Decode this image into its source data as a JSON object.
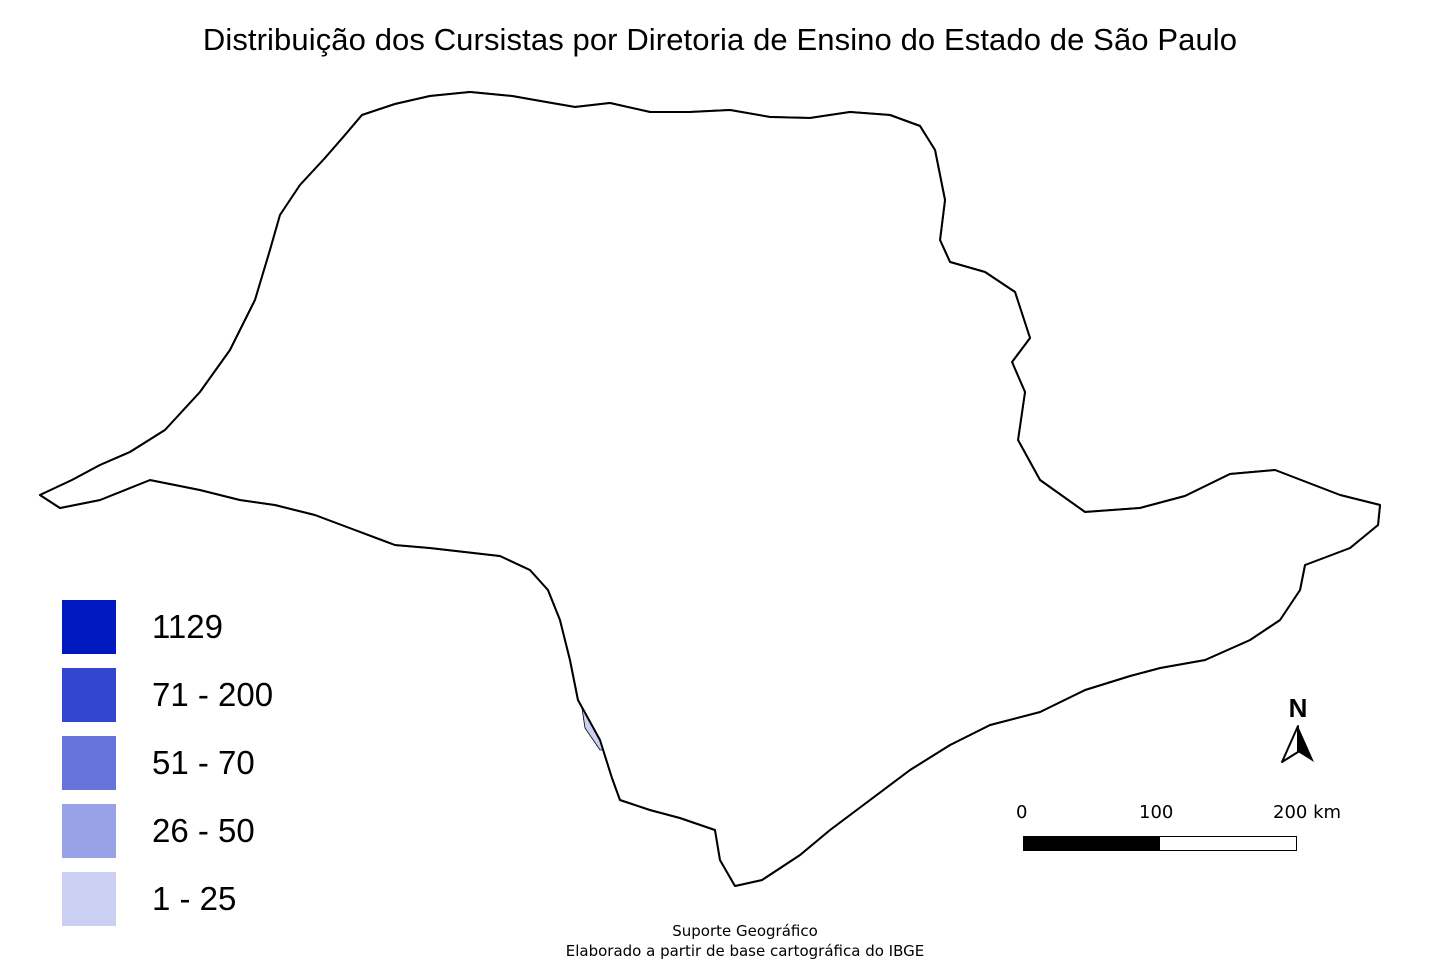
{
  "title": "Distribuição dos Cursistas por Diretoria de Ensino do Estado de São Paulo",
  "legend": [
    {
      "label": "1129",
      "color": "#0018c0"
    },
    {
      "label": "71 - 200",
      "color": "#3346cf"
    },
    {
      "label": "51 - 70",
      "color": "#6573db"
    },
    {
      "label": "26 - 50",
      "color": "#99a2e6"
    },
    {
      "label": "1 - 25",
      "color": "#cbd0f3"
    }
  ],
  "north_arrow": {
    "label": "N"
  },
  "scale_bar": {
    "labels": [
      "0",
      "100",
      "200 km"
    ],
    "bar_colors": [
      "#000000",
      "#ffffff"
    ]
  },
  "footer": {
    "line1": "Suporte Geográfico",
    "line2": "Elaborado a partir de base cartográfica do IBGE"
  },
  "map": {
    "base_fill": "#ffffff",
    "border_color": "#000000"
  }
}
